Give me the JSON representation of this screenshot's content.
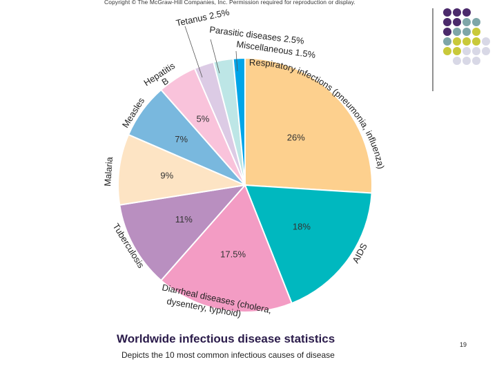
{
  "header": {
    "copyright": "Copyright © The McGraw-Hill Companies, Inc. Permission required for reproduction or display."
  },
  "caption": {
    "title": "Worldwide infectious disease statistics",
    "subtitle": "Depicts the 10 most common infectious causes of disease"
  },
  "page_number": "19",
  "decoration": {
    "dot_colors": [
      "#4b2a6b",
      "#7ea6a8",
      "#c9c93a",
      "#d8d8e6"
    ]
  },
  "chart_data": {
    "type": "pie",
    "title": "",
    "slices": [
      {
        "label": "Respiratory infections (pneumonia, influenza)",
        "value": 26,
        "value_label": "26%",
        "color": "#fdd08e"
      },
      {
        "label": "AIDS",
        "value": 18,
        "value_label": "18%",
        "color": "#00b8bf"
      },
      {
        "label": "Diarrheal diseases (cholera, dysentery, typhoid)",
        "value": 17.5,
        "value_label": "17.5%",
        "color": "#f39cc4"
      },
      {
        "label": "Tuberculosis",
        "value": 11,
        "value_label": "11%",
        "color": "#b98fc0"
      },
      {
        "label": "Malaria",
        "value": 9,
        "value_label": "9%",
        "color": "#fde4c4"
      },
      {
        "label": "Measles",
        "value": 7,
        "value_label": "7%",
        "color": "#79b8de"
      },
      {
        "label": "Hepatitis B",
        "value": 5,
        "value_label": "5%",
        "color": "#f9c3db"
      },
      {
        "label": "Tetanus 2.5%",
        "value": 2.5,
        "value_label": "",
        "color": "#dccbe5"
      },
      {
        "label": "Parasitic diseases 2.5%",
        "value": 2.5,
        "value_label": "",
        "color": "#bde6e6"
      },
      {
        "label": "Miscellaneous 1.5%",
        "value": 1.5,
        "value_label": "",
        "color": "#00a5e8"
      }
    ]
  }
}
